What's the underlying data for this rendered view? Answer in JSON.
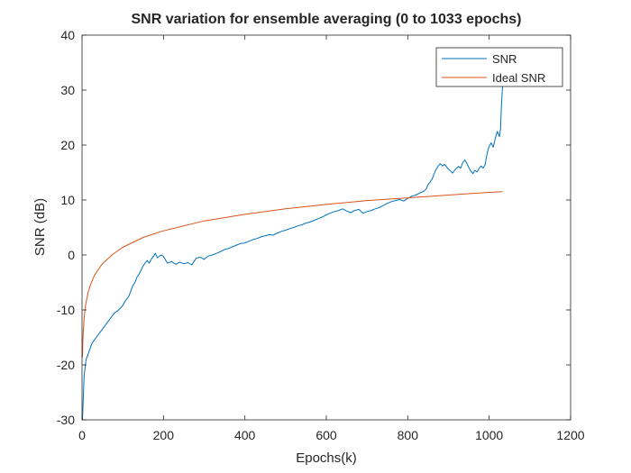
{
  "chart_data": {
    "type": "line",
    "title": "SNR variation for ensemble averaging (0 to 1033 epochs)",
    "xlabel": "Epochs(k)",
    "ylabel": "SNR (dB)",
    "xlim": [
      0,
      1200
    ],
    "ylim": [
      -30,
      40
    ],
    "xticks": [
      0,
      200,
      400,
      600,
      800,
      1000,
      1200
    ],
    "yticks": [
      -30,
      -20,
      -10,
      0,
      10,
      20,
      30,
      40
    ],
    "grid": false,
    "legend_position": "top-right",
    "series": [
      {
        "name": "SNR",
        "color": "#0072bd",
        "x": [
          1,
          5,
          10,
          15,
          20,
          25,
          30,
          35,
          40,
          45,
          50,
          55,
          60,
          65,
          70,
          75,
          80,
          85,
          90,
          95,
          100,
          105,
          110,
          115,
          120,
          125,
          130,
          135,
          140,
          145,
          150,
          155,
          160,
          165,
          170,
          175,
          180,
          185,
          190,
          195,
          200,
          210,
          220,
          230,
          240,
          250,
          260,
          270,
          280,
          290,
          300,
          310,
          320,
          330,
          340,
          350,
          360,
          370,
          380,
          390,
          400,
          410,
          420,
          430,
          440,
          450,
          460,
          470,
          480,
          490,
          500,
          510,
          520,
          530,
          540,
          550,
          560,
          570,
          580,
          590,
          600,
          610,
          620,
          630,
          640,
          650,
          660,
          670,
          680,
          690,
          700,
          710,
          720,
          730,
          740,
          750,
          760,
          770,
          780,
          790,
          800,
          810,
          820,
          830,
          840,
          845,
          850,
          855,
          860,
          865,
          870,
          875,
          880,
          885,
          890,
          895,
          900,
          905,
          910,
          915,
          920,
          925,
          930,
          935,
          940,
          945,
          950,
          955,
          960,
          965,
          970,
          975,
          980,
          985,
          990,
          995,
          1000,
          1005,
          1010,
          1015,
          1020,
          1025,
          1028,
          1030,
          1033
        ],
        "y": [
          -30,
          -22,
          -19,
          -18,
          -17,
          -16,
          -15.5,
          -15,
          -14.5,
          -14,
          -13.5,
          -13,
          -12.5,
          -12,
          -11.5,
          -11,
          -10.5,
          -10.3,
          -10,
          -9.6,
          -9.2,
          -8.5,
          -8,
          -7.5,
          -6.5,
          -5.5,
          -5,
          -4,
          -3.5,
          -2.8,
          -2,
          -1.5,
          -1,
          -1.5,
          -0.8,
          -0.3,
          0.3,
          -0.5,
          -0.2,
          0,
          -0.3,
          -1.5,
          -1.2,
          -1.7,
          -1.3,
          -1.6,
          -1.4,
          -1.8,
          -0.6,
          -0.4,
          -0.8,
          -0.2,
          0,
          0.3,
          0.6,
          1,
          1.2,
          1.5,
          1.8,
          2.1,
          2.2,
          2.5,
          2.8,
          3,
          3.3,
          3.5,
          3.7,
          3.6,
          4,
          4.3,
          4.5,
          4.8,
          5,
          5.3,
          5.5,
          5.8,
          6,
          6.3,
          6.6,
          6.9,
          7.3,
          7.6,
          7.9,
          8.1,
          8.4,
          8,
          7.7,
          8.1,
          8.3,
          7.6,
          7.9,
          8.1,
          8.4,
          8.6,
          9,
          9.4,
          9.7,
          9.9,
          10.1,
          9.8,
          10.3,
          10.7,
          10.9,
          11.3,
          11.6,
          12,
          12.8,
          13.3,
          13.8,
          14.8,
          15.6,
          16.2,
          16.6,
          16.2,
          16.5,
          16.1,
          15.6,
          15.3,
          14.9,
          15.4,
          15.8,
          16.1,
          15.8,
          16.8,
          17.3,
          16.7,
          15.9,
          15.3,
          14.8,
          15.4,
          15.1,
          15.7,
          16.2,
          15.8,
          16.4,
          18.5,
          19.8,
          20.4,
          19.6,
          21.2,
          22.5,
          21.5,
          23,
          27,
          31
        ]
      },
      {
        "name": "Ideal SNR",
        "color": "#d95319",
        "x": [
          1,
          2,
          3,
          5,
          7,
          10,
          15,
          20,
          30,
          40,
          50,
          75,
          100,
          150,
          200,
          300,
          400,
          500,
          600,
          700,
          800,
          900,
          1000,
          1033
        ],
        "y": [
          -18.6,
          -15.6,
          -13.8,
          -11.6,
          -10.1,
          -8.6,
          -6.8,
          -5.6,
          -3.8,
          -2.6,
          -1.6,
          0.1,
          1.4,
          3.2,
          4.4,
          6.2,
          7.4,
          8.4,
          9.2,
          9.9,
          10.4,
          10.9,
          11.4,
          11.5
        ]
      }
    ]
  }
}
